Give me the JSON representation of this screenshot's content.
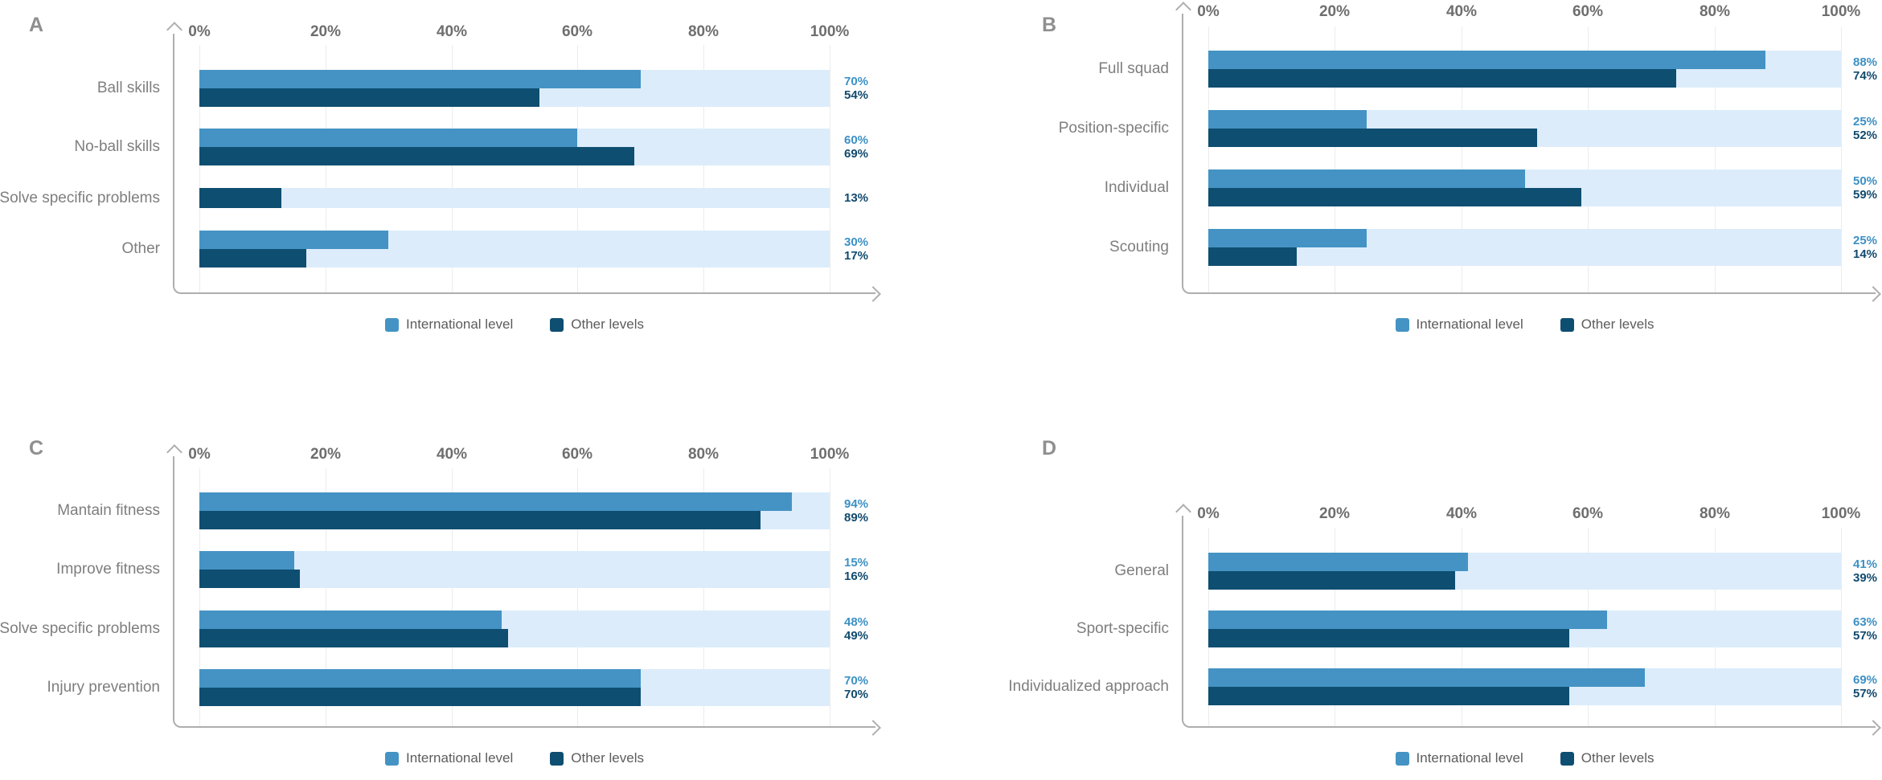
{
  "figure": {
    "background": "#ffffff"
  },
  "colors": {
    "international": "#4493c4",
    "other": "#0e4e71",
    "track": "#dcecfb",
    "axis": "#aeaeae",
    "grid": "#ececec",
    "tick_label": "#6e6e6e",
    "category_label": "#7e7e7e",
    "panel_letter": "#8f8f8f",
    "legend_text": "#5c5c5c",
    "value_international": "#3d90c4",
    "value_other": "#114a6e"
  },
  "chart_data": [
    {
      "panel": "A",
      "type": "bar",
      "orientation": "horizontal",
      "x_axis": {
        "tick_labels": [
          "0%",
          "20%",
          "40%",
          "60%",
          "80%",
          "100%"
        ],
        "range": [
          0,
          100
        ],
        "grid": true
      },
      "categories": [
        "Ball skills",
        "No-ball skills",
        "Solve specific problems",
        "Other"
      ],
      "series": [
        {
          "name": "International level",
          "values": [
            70,
            60,
            null,
            30
          ]
        },
        {
          "name": "Other levels",
          "values": [
            54,
            69,
            13,
            17
          ]
        }
      ],
      "value_labels": [
        [
          "70%",
          "54%"
        ],
        [
          "60%",
          "69%"
        ],
        [
          null,
          "13%"
        ],
        [
          "30%",
          "17%"
        ]
      ],
      "legend": [
        "International level",
        "Other levels"
      ],
      "legend_position": "bottom"
    },
    {
      "panel": "B",
      "type": "bar",
      "orientation": "horizontal",
      "x_axis": {
        "tick_labels": [
          "0%",
          "20%",
          "40%",
          "60%",
          "80%",
          "100%"
        ],
        "range": [
          0,
          100
        ],
        "grid": true
      },
      "categories": [
        "Full squad",
        "Position-specific",
        "Individual",
        "Scouting"
      ],
      "series": [
        {
          "name": "International level",
          "values": [
            88,
            25,
            50,
            25
          ]
        },
        {
          "name": "Other levels",
          "values": [
            74,
            52,
            59,
            14
          ]
        }
      ],
      "value_labels": [
        [
          "88%",
          "74%"
        ],
        [
          "25%",
          "52%"
        ],
        [
          "50%",
          "59%"
        ],
        [
          "25%",
          "14%"
        ]
      ],
      "legend": [
        "International level",
        "Other levels"
      ],
      "legend_position": "bottom"
    },
    {
      "panel": "C",
      "type": "bar",
      "orientation": "horizontal",
      "x_axis": {
        "tick_labels": [
          "0%",
          "20%",
          "40%",
          "60%",
          "80%",
          "100%"
        ],
        "range": [
          0,
          100
        ],
        "grid": true
      },
      "categories": [
        "Mantain fitness",
        "Improve fitness",
        "Solve specific problems",
        "Injury prevention"
      ],
      "series": [
        {
          "name": "International level",
          "values": [
            94,
            15,
            48,
            70
          ]
        },
        {
          "name": "Other levels",
          "values": [
            89,
            16,
            49,
            70
          ]
        }
      ],
      "value_labels": [
        [
          "94%",
          "89%"
        ],
        [
          "15%",
          "16%"
        ],
        [
          "48%",
          "49%"
        ],
        [
          "70%",
          "70%"
        ]
      ],
      "legend": [
        "International level",
        "Other levels"
      ],
      "legend_position": "bottom"
    },
    {
      "panel": "D",
      "type": "bar",
      "orientation": "horizontal",
      "x_axis": {
        "tick_labels": [
          "0%",
          "20%",
          "40%",
          "60%",
          "80%",
          "100%"
        ],
        "range": [
          0,
          100
        ],
        "grid": true
      },
      "categories": [
        "General",
        "Sport-specific",
        "Individualized approach"
      ],
      "series": [
        {
          "name": "International level",
          "values": [
            41,
            63,
            69
          ]
        },
        {
          "name": "Other levels",
          "values": [
            39,
            57,
            57
          ]
        }
      ],
      "value_labels": [
        [
          "41%",
          "39%"
        ],
        [
          "63%",
          "57%"
        ],
        [
          "69%",
          "57%"
        ]
      ],
      "legend": [
        "International level",
        "Other levels"
      ],
      "legend_position": "bottom"
    }
  ]
}
